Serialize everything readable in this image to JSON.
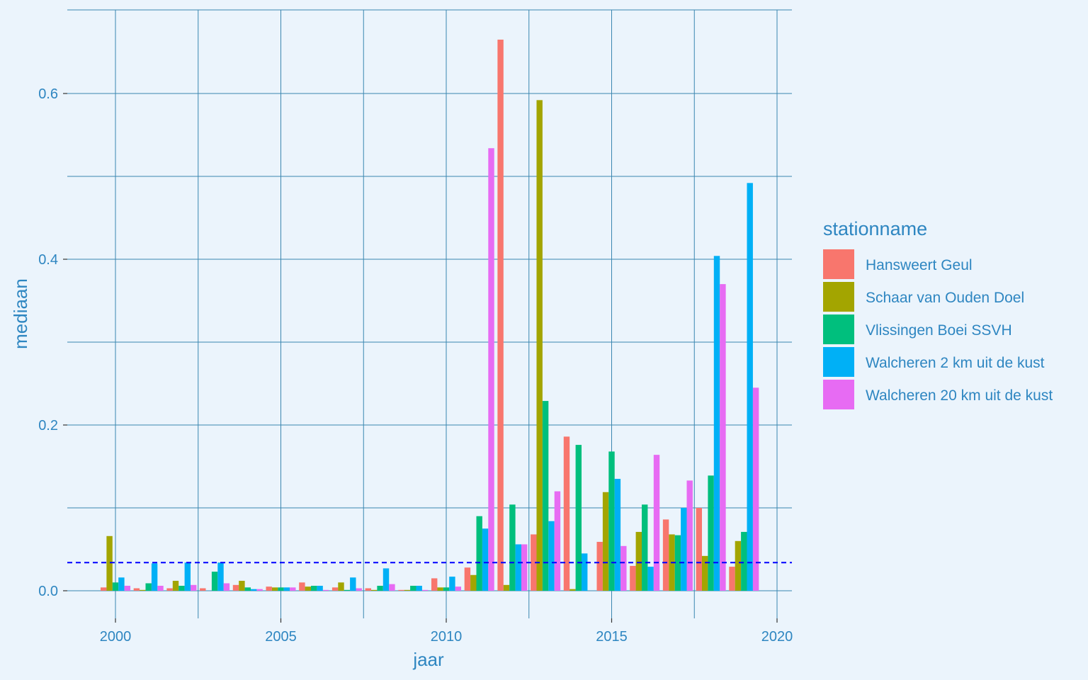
{
  "chart_data": {
    "type": "bar",
    "title": "",
    "xlabel": "jaar",
    "ylabel": "mediaan",
    "x_ticks": [
      "2000",
      "2005",
      "2010",
      "2015",
      "2020"
    ],
    "y_ticks": [
      "0.0",
      "0.2",
      "0.4",
      "0.6"
    ],
    "xlim": [
      1998.6,
      2020.5
    ],
    "ylim": [
      -0.034,
      0.7
    ],
    "grid": true,
    "legend_position": "right",
    "legend_title": "stationname",
    "reference_line": {
      "y": 0.034,
      "style": "dashed",
      "color": "#0000FF"
    },
    "categories": [
      2000,
      2001,
      2002,
      2003,
      2004,
      2005,
      2006,
      2007,
      2008,
      2009,
      2010,
      2011,
      2012,
      2013,
      2014,
      2015,
      2016,
      2017,
      2018,
      2019
    ],
    "series": [
      {
        "name": "Hansweert Geul",
        "color": "#F8766D",
        "values": [
          0.004,
          0.003,
          0.003,
          0.003,
          0.007,
          0.005,
          0.01,
          0.004,
          0.003,
          0.001,
          0.015,
          0.028,
          0.665,
          0.068,
          0.186,
          0.059,
          0.03,
          0.086,
          0.1,
          0.029
        ]
      },
      {
        "name": "Schaar van Ouden Doel",
        "color": "#A3A500",
        "values": [
          0.066,
          0.001,
          0.012,
          0.0,
          0.012,
          0.004,
          0.005,
          0.01,
          0.001,
          0.001,
          0.004,
          0.019,
          0.007,
          0.592,
          0.002,
          0.119,
          0.071,
          0.068,
          0.042,
          0.06
        ]
      },
      {
        "name": "Vlissingen Boei SSVH",
        "color": "#00BF7D",
        "values": [
          0.01,
          0.009,
          0.006,
          0.023,
          0.004,
          0.004,
          0.006,
          0.001,
          0.006,
          0.006,
          0.004,
          0.09,
          0.104,
          0.229,
          0.176,
          0.168,
          0.104,
          0.067,
          0.139,
          0.071
        ]
      },
      {
        "name": "Walcheren 2 km uit de kust",
        "color": "#00B0F6",
        "values": [
          0.016,
          0.033,
          0.034,
          0.034,
          0.002,
          0.004,
          0.006,
          0.016,
          0.027,
          0.006,
          0.017,
          0.075,
          0.056,
          0.084,
          0.045,
          0.135,
          0.029,
          0.1,
          0.404,
          0.492
        ]
      },
      {
        "name": "Walcheren 20 km uit de kust",
        "color": "#E76BF3",
        "values": [
          0.006,
          0.006,
          0.007,
          0.009,
          0.002,
          0.004,
          0.001,
          0.003,
          0.008,
          0.001,
          0.005,
          0.534,
          0.056,
          0.12,
          0.0,
          0.054,
          0.164,
          0.133,
          0.37,
          0.245
        ]
      }
    ]
  }
}
